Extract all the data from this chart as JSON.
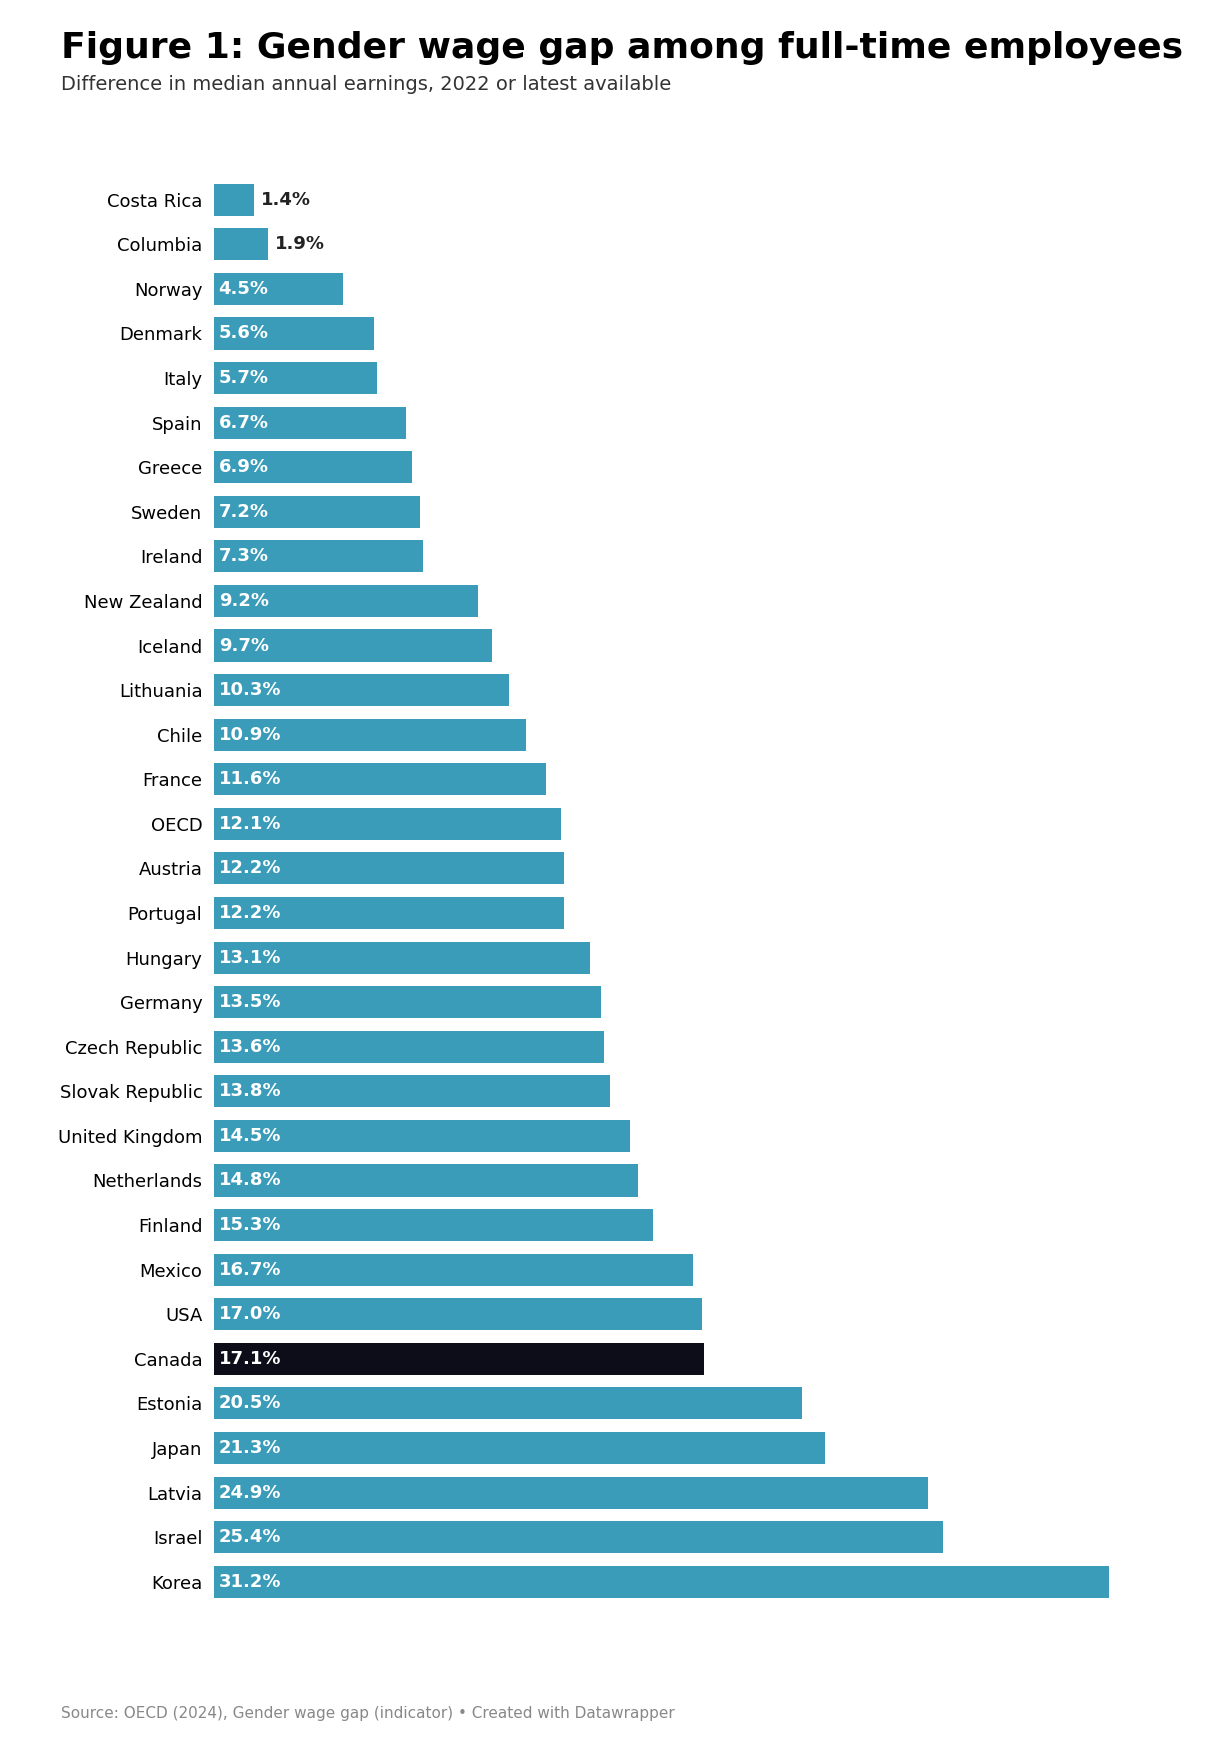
{
  "title": "Figure 1: Gender wage gap among full-time employees",
  "subtitle": "Difference in median annual earnings, 2022 or latest available",
  "source": "Source: OECD (2024), Gender wage gap (indicator) • Created with Datawrapper",
  "countries": [
    "Costa Rica",
    "Columbia",
    "Norway",
    "Denmark",
    "Italy",
    "Spain",
    "Greece",
    "Sweden",
    "Ireland",
    "New Zealand",
    "Iceland",
    "Lithuania",
    "Chile",
    "France",
    "OECD",
    "Austria",
    "Portugal",
    "Hungary",
    "Germany",
    "Czech Republic",
    "Slovak Republic",
    "United Kingdom",
    "Netherlands",
    "Finland",
    "Mexico",
    "USA",
    "Canada",
    "Estonia",
    "Japan",
    "Latvia",
    "Israel",
    "Korea"
  ],
  "values": [
    1.4,
    1.9,
    4.5,
    5.6,
    5.7,
    6.7,
    6.9,
    7.2,
    7.3,
    9.2,
    9.7,
    10.3,
    10.9,
    11.6,
    12.1,
    12.2,
    12.2,
    13.1,
    13.5,
    13.6,
    13.8,
    14.5,
    14.8,
    15.3,
    16.7,
    17.0,
    17.1,
    20.5,
    21.3,
    24.9,
    25.4,
    31.2
  ],
  "bar_color": "#3a9cb8",
  "highlight_color": "#0d0d1a",
  "highlight_country": "Canada",
  "label_color_inside": "#ffffff",
  "label_color_outside": "#222222",
  "background_color": "#ffffff",
  "title_fontsize": 26,
  "subtitle_fontsize": 14,
  "label_fontsize": 13,
  "tick_fontsize": 13,
  "source_fontsize": 11,
  "xlim_max": 34,
  "outside_threshold": 3.5
}
